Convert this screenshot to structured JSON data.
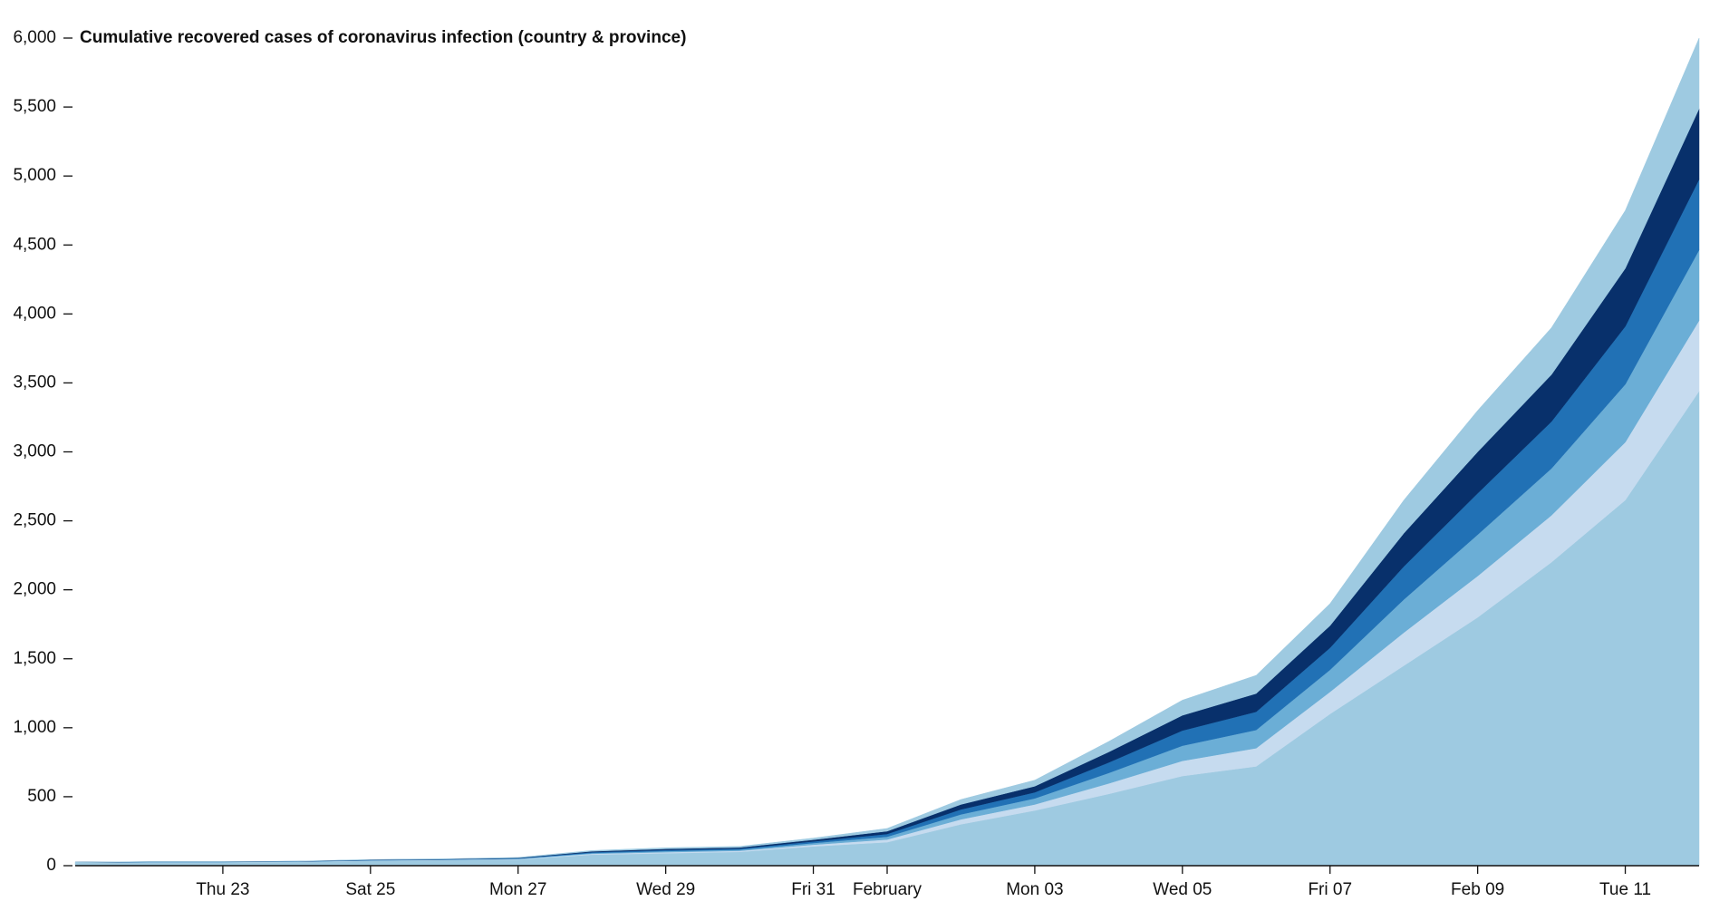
{
  "chart_data": {
    "type": "stacked_area",
    "title": "Cumulative recovered cases of coronavirus infection (country & province)",
    "x": [
      "01-21",
      "01-22",
      "01-23",
      "01-24",
      "01-25",
      "01-26",
      "01-27",
      "01-28",
      "01-29",
      "01-30",
      "01-31",
      "02-01",
      "02-02",
      "02-03",
      "02-04",
      "02-05",
      "02-06",
      "02-07",
      "02-08",
      "02-09",
      "02-10",
      "02-11",
      "02-12"
    ],
    "series": [
      {
        "color": "#9ecae1",
        "values": [
          25,
          25,
          25,
          28,
          35,
          40,
          45,
          80,
          90,
          100,
          140,
          170,
          300,
          400,
          520,
          650,
          720,
          1100,
          1450,
          1800,
          2200,
          2650,
          3440
        ]
      },
      {
        "color": "#c6dbef",
        "values": [
          0,
          1,
          1,
          1,
          2,
          2,
          3,
          6,
          8,
          8,
          12,
          20,
          36,
          44,
          76,
          110,
          132,
          160,
          240,
          300,
          340,
          420,
          512
        ]
      },
      {
        "color": "#6baed6",
        "values": [
          0,
          1,
          1,
          1,
          2,
          2,
          3,
          6,
          8,
          8,
          12,
          20,
          36,
          44,
          76,
          110,
          132,
          160,
          240,
          300,
          340,
          420,
          512
        ]
      },
      {
        "color": "#2171b5",
        "values": [
          0,
          1,
          1,
          1,
          2,
          2,
          3,
          6,
          8,
          8,
          12,
          20,
          36,
          44,
          76,
          110,
          132,
          160,
          240,
          300,
          340,
          420,
          512
        ]
      },
      {
        "color": "#08306b",
        "values": [
          0,
          1,
          1,
          1,
          2,
          2,
          3,
          6,
          8,
          8,
          12,
          20,
          36,
          44,
          76,
          110,
          132,
          160,
          240,
          300,
          340,
          420,
          512
        ]
      },
      {
        "color": "#9ecae1",
        "values": [
          0,
          1,
          1,
          1,
          2,
          2,
          3,
          6,
          8,
          8,
          12,
          20,
          36,
          44,
          76,
          110,
          132,
          160,
          240,
          300,
          340,
          420,
          512
        ]
      }
    ],
    "xlim": [
      "01-21",
      "02-12"
    ],
    "xticks": [
      {
        "value": "01-23",
        "label": "Thu 23"
      },
      {
        "value": "01-25",
        "label": "Sat 25"
      },
      {
        "value": "01-27",
        "label": "Mon 27"
      },
      {
        "value": "01-29",
        "label": "Wed 29"
      },
      {
        "value": "01-31",
        "label": "Fri 31"
      },
      {
        "value": "02-01",
        "label": "February"
      },
      {
        "value": "02-03",
        "label": "Mon 03"
      },
      {
        "value": "02-05",
        "label": "Wed 05"
      },
      {
        "value": "02-07",
        "label": "Fri 07"
      },
      {
        "value": "02-09",
        "label": "Feb 09"
      },
      {
        "value": "02-11",
        "label": "Tue 11"
      }
    ],
    "ylim": [
      0,
      6000
    ],
    "yticks": [
      0,
      500,
      {
        "value": 1000,
        "label": "1,000"
      },
      {
        "value": 1500,
        "label": "1,500"
      },
      {
        "value": 2000,
        "label": "2,000"
      },
      {
        "value": 2500,
        "label": "2,500"
      },
      {
        "value": 3000,
        "label": "3,000"
      },
      {
        "value": 3500,
        "label": "3,500"
      },
      {
        "value": 4000,
        "label": "4,000"
      },
      {
        "value": 4500,
        "label": "4,500"
      },
      {
        "value": 5000,
        "label": "5,000"
      },
      {
        "value": 5500,
        "label": "5,500"
      },
      {
        "value": 6000,
        "label": "6,000"
      }
    ]
  }
}
